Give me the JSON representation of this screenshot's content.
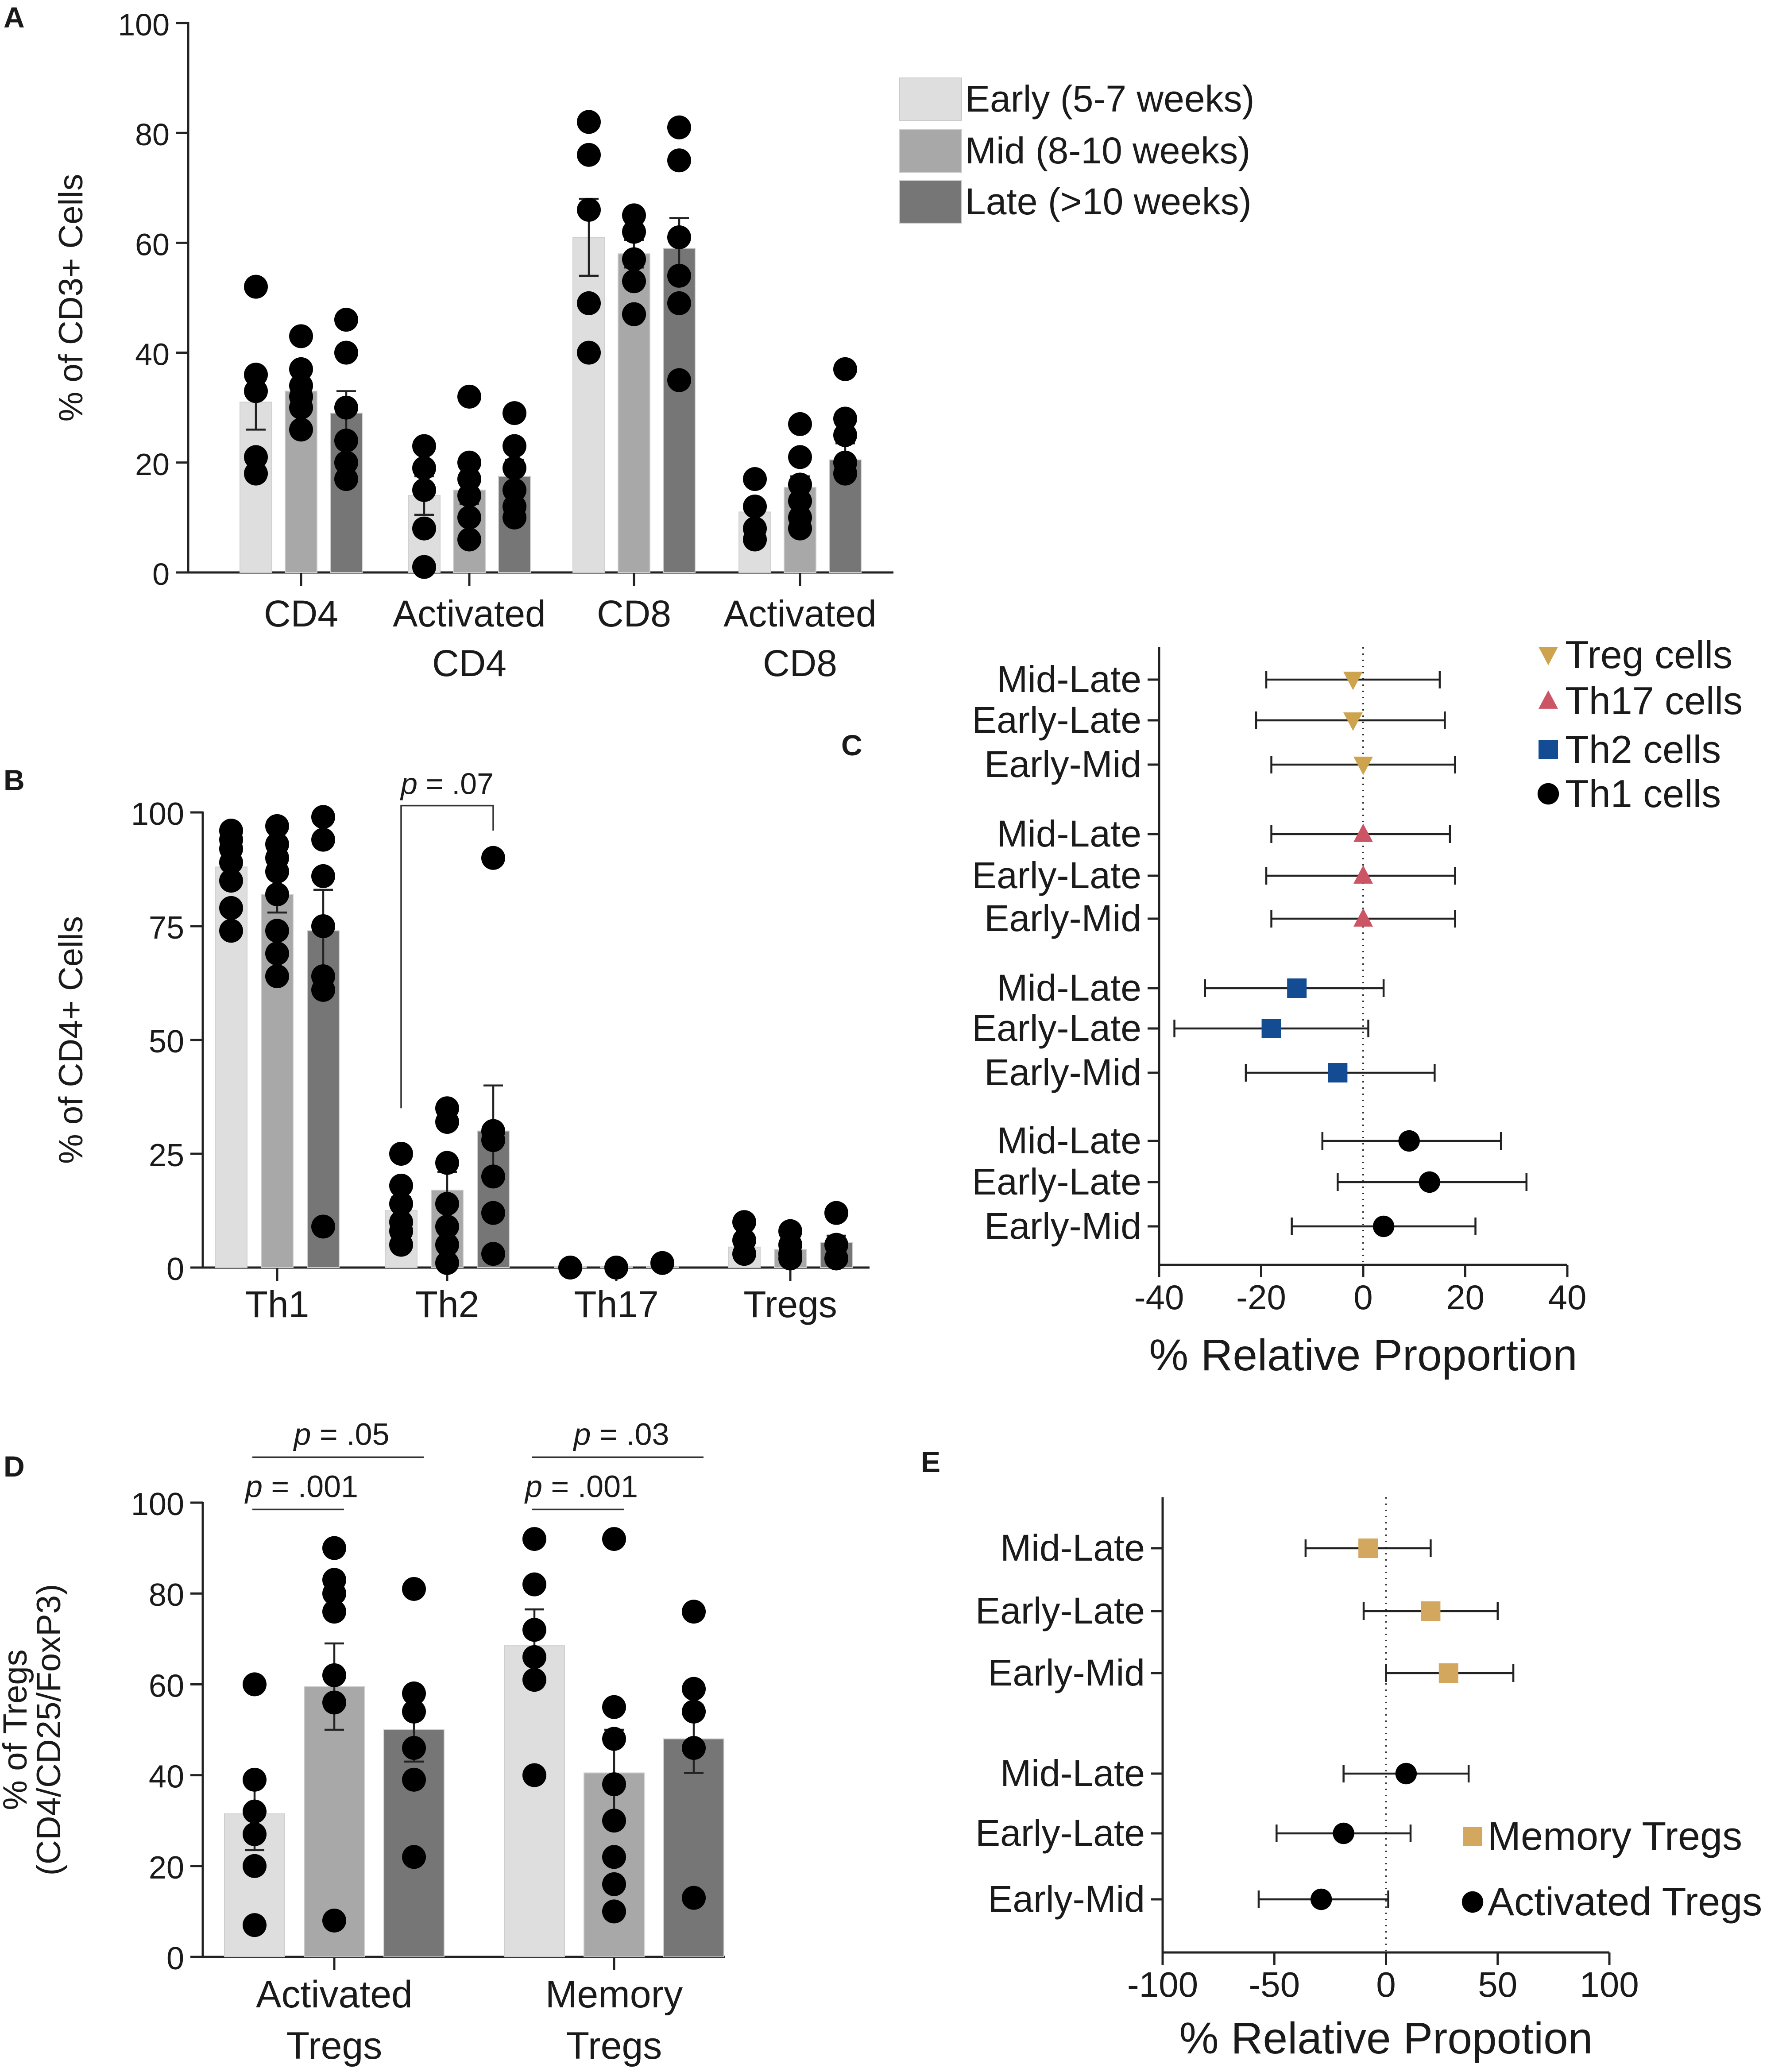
{
  "colors": {
    "early": "#dedede",
    "mid": "#a8a8a8",
    "late": "#767676",
    "treg": "#cda34e",
    "th17": "#cc5565",
    "th2": "#144c93",
    "th1": "#000000",
    "memory": "#d3a75e",
    "activated": "#000000"
  },
  "chart_data": [
    {
      "panel": "A",
      "type": "bar",
      "ylabel": "% of CD3+ Cells",
      "ylim": [
        0,
        100
      ],
      "yticks": [
        0,
        20,
        40,
        60,
        80,
        100
      ],
      "categories": [
        "CD4",
        "Activated CD4",
        "CD8",
        "Activated CD8"
      ],
      "category_lines": [
        [
          "CD4"
        ],
        [
          "Activated",
          "CD4"
        ],
        [
          "CD8"
        ],
        [
          "Activated",
          "CD8"
        ]
      ],
      "legend": [
        "Early (5-7 weeks)",
        "Mid (8-10 weeks)",
        "Late (>10 weeks)"
      ],
      "series": [
        {
          "name": "Early (5-7 weeks)",
          "values": [
            31,
            14,
            61,
            11
          ],
          "sem": [
            5,
            3.5,
            7,
            2
          ],
          "points": [
            [
              52,
              36,
              33,
              21,
              18
            ],
            [
              23,
              19,
              15,
              8,
              1
            ],
            [
              82,
              76,
              66,
              49,
              40
            ],
            [
              17,
              12,
              8,
              6
            ]
          ]
        },
        {
          "name": "Mid (8-10 weeks)",
          "values": [
            33,
            15,
            58,
            15.5
          ],
          "sem": [
            1.5,
            2.5,
            2.5,
            2
          ],
          "points": [
            [
              43,
              37,
              34,
              32,
              30,
              26
            ],
            [
              32,
              20,
              17,
              14,
              10,
              6
            ],
            [
              65,
              62,
              57,
              53,
              47,
              47
            ],
            [
              27,
              21,
              16,
              13,
              10,
              8
            ]
          ]
        },
        {
          "name": "Late (>10 weeks)",
          "values": [
            29,
            17.5,
            59,
            20.5
          ],
          "sem": [
            4,
            3,
            5.5,
            3
          ],
          "points": [
            [
              46,
              40,
              30,
              24,
              20,
              17
            ],
            [
              29,
              23,
              19,
              15,
              12,
              10
            ],
            [
              81,
              75,
              61,
              54,
              49,
              35
            ],
            [
              37,
              28,
              25,
              20,
              18
            ]
          ]
        }
      ]
    },
    {
      "panel": "B",
      "type": "bar",
      "ylabel": "% of CD4+ Cells",
      "ylim": [
        0,
        100
      ],
      "yticks": [
        0,
        25,
        50,
        75,
        100
      ],
      "categories": [
        "Th1",
        "Th2",
        "Th17",
        "Tregs"
      ],
      "annotation": {
        "text": "p = .07",
        "category": 1,
        "from": 0,
        "to": 2,
        "from_y": 35,
        "to_y": 96,
        "bracket_y": 101.5
      },
      "series": [
        {
          "name": "Early (5-7 weeks)",
          "values": [
            88,
            12.5,
            0.3,
            4.5
          ],
          "sem": [
            3,
            3,
            0.2,
            1.2
          ],
          "points": [
            [
              96,
              94,
              92,
              89,
              85,
              79,
              74
            ],
            [
              25,
              18,
              14,
              10,
              8,
              5
            ],
            [
              0
            ],
            [
              10,
              6,
              3
            ]
          ]
        },
        {
          "name": "Mid (8-10 weeks)",
          "values": [
            82,
            17,
            0.3,
            4
          ],
          "sem": [
            4,
            4,
            0.2,
            1
          ],
          "points": [
            [
              97,
              93,
              90,
              87,
              82,
              74,
              69,
              64
            ],
            [
              35,
              32,
              23,
              14,
              9,
              5,
              1
            ],
            [
              0
            ],
            [
              8,
              5,
              3,
              2
            ]
          ]
        },
        {
          "name": "Late (>10 weeks)",
          "values": [
            74,
            30,
            0.3,
            5.5
          ],
          "sem": [
            9,
            10,
            0.2,
            1.5
          ],
          "points": [
            [
              99,
              94,
              86,
              75,
              64,
              61,
              9
            ],
            [
              90,
              30,
              28,
              20,
              12,
              3
            ],
            [
              1
            ],
            [
              12,
              5,
              2
            ]
          ]
        }
      ]
    },
    {
      "panel": "C",
      "type": "forest",
      "xlabel": "% Relative Proportion",
      "xlim": [
        -40,
        40
      ],
      "xticks": [
        -40,
        -20,
        0,
        20,
        40
      ],
      "legend": [
        "Treg cells",
        "Th17 cells",
        "Th2 cells",
        "Th1 cells"
      ],
      "groups": [
        {
          "name": "Treg cells",
          "marker": "triangle-down",
          "color_key": "treg",
          "rows": [
            {
              "label": "Mid-Late",
              "value": -2,
              "low": -19,
              "high": 15
            },
            {
              "label": "Early-Late",
              "value": -2,
              "low": -21,
              "high": 16
            },
            {
              "label": "Early-Mid",
              "value": 0,
              "low": -18,
              "high": 18
            }
          ]
        },
        {
          "name": "Th17 cells",
          "marker": "triangle-up",
          "color_key": "th17",
          "rows": [
            {
              "label": "Mid-Late",
              "value": 0,
              "low": -18,
              "high": 17
            },
            {
              "label": "Early-Late",
              "value": 0,
              "low": -19,
              "high": 18
            },
            {
              "label": "Early-Mid",
              "value": 0,
              "low": -18,
              "high": 18
            }
          ]
        },
        {
          "name": "Th2 cells",
          "marker": "square",
          "color_key": "th2",
          "rows": [
            {
              "label": "Mid-Late",
              "value": -13,
              "low": -31,
              "high": 4
            },
            {
              "label": "Early-Late",
              "value": -18,
              "low": -37,
              "high": 1
            },
            {
              "label": "Early-Mid",
              "value": -5,
              "low": -23,
              "high": 14
            }
          ]
        },
        {
          "name": "Th1 cells",
          "marker": "circle",
          "color_key": "th1",
          "rows": [
            {
              "label": "Mid-Late",
              "value": 9,
              "low": -8,
              "high": 27
            },
            {
              "label": "Early-Late",
              "value": 13,
              "low": -5,
              "high": 32
            },
            {
              "label": "Early-Mid",
              "value": 4,
              "low": -14,
              "high": 22
            }
          ]
        }
      ]
    },
    {
      "panel": "D",
      "type": "bar",
      "ylabel": "% of Tregs",
      "ylabel2": "(CD4/CD25/FoxP3)",
      "ylim": [
        0,
        100
      ],
      "yticks": [
        0,
        20,
        40,
        60,
        80,
        100
      ],
      "categories": [
        "Activated Tregs",
        "Memory Tregs"
      ],
      "category_lines": [
        [
          "Activated",
          "Tregs"
        ],
        [
          "Memory",
          "Tregs"
        ]
      ],
      "annotations": [
        {
          "text": "p = .05",
          "category": 0,
          "from": 0,
          "to": 2,
          "y": 110
        },
        {
          "text": "p = .001",
          "category": 0,
          "from": 0,
          "to": 1,
          "y": 98.5
        },
        {
          "text": "p = .03",
          "category": 1,
          "from": 0,
          "to": 2,
          "y": 110
        },
        {
          "text": "p = .001",
          "category": 1,
          "from": 0,
          "to": 1,
          "y": 98.5
        }
      ],
      "series": [
        {
          "name": "Early (5-7 weeks)",
          "values": [
            31.5,
            68.5
          ],
          "sem": [
            8,
            8
          ],
          "points": [
            [
              60,
              39,
              32,
              27,
              20,
              7
            ],
            [
              92,
              82,
              72,
              66,
              61,
              40
            ]
          ]
        },
        {
          "name": "Mid (8-10 weeks)",
          "values": [
            59.5,
            40.5
          ],
          "sem": [
            9.5,
            9.5
          ],
          "points": [
            [
              90,
              83,
              80,
              76,
              62,
              56,
              8
            ],
            [
              92,
              55,
              48,
              38,
              30,
              22,
              16,
              10
            ]
          ]
        },
        {
          "name": "Late (>10 weeks)",
          "values": [
            50,
            48
          ],
          "sem": [
            7,
            7.5
          ],
          "points": [
            [
              81,
              58,
              54,
              46,
              39,
              22
            ],
            [
              76,
              59,
              54,
              46,
              13
            ]
          ]
        }
      ]
    },
    {
      "panel": "E",
      "type": "forest",
      "xlabel": "% Relative Propotion",
      "xlim": [
        -100,
        100
      ],
      "xticks": [
        -100,
        -50,
        0,
        50,
        100
      ],
      "legend": [
        "Memory Tregs",
        "Activated Tregs"
      ],
      "groups": [
        {
          "name": "Memory Tregs",
          "marker": "square",
          "color_key": "memory",
          "rows": [
            {
              "label": "Mid-Late",
              "value": -8,
              "low": -36,
              "high": 20
            },
            {
              "label": "Early-Late",
              "value": 20,
              "low": -10,
              "high": 50
            },
            {
              "label": "Early-Mid",
              "value": 28,
              "low": 0,
              "high": 57
            }
          ]
        },
        {
          "name": "Activated Tregs",
          "marker": "circle",
          "color_key": "activated",
          "rows": [
            {
              "label": "Mid-Late",
              "value": 9,
              "low": -19,
              "high": 37
            },
            {
              "label": "Early-Late",
              "value": -19,
              "low": -49,
              "high": 11
            },
            {
              "label": "Early-Mid",
              "value": -29,
              "low": -57,
              "high": 1
            }
          ]
        }
      ]
    }
  ]
}
